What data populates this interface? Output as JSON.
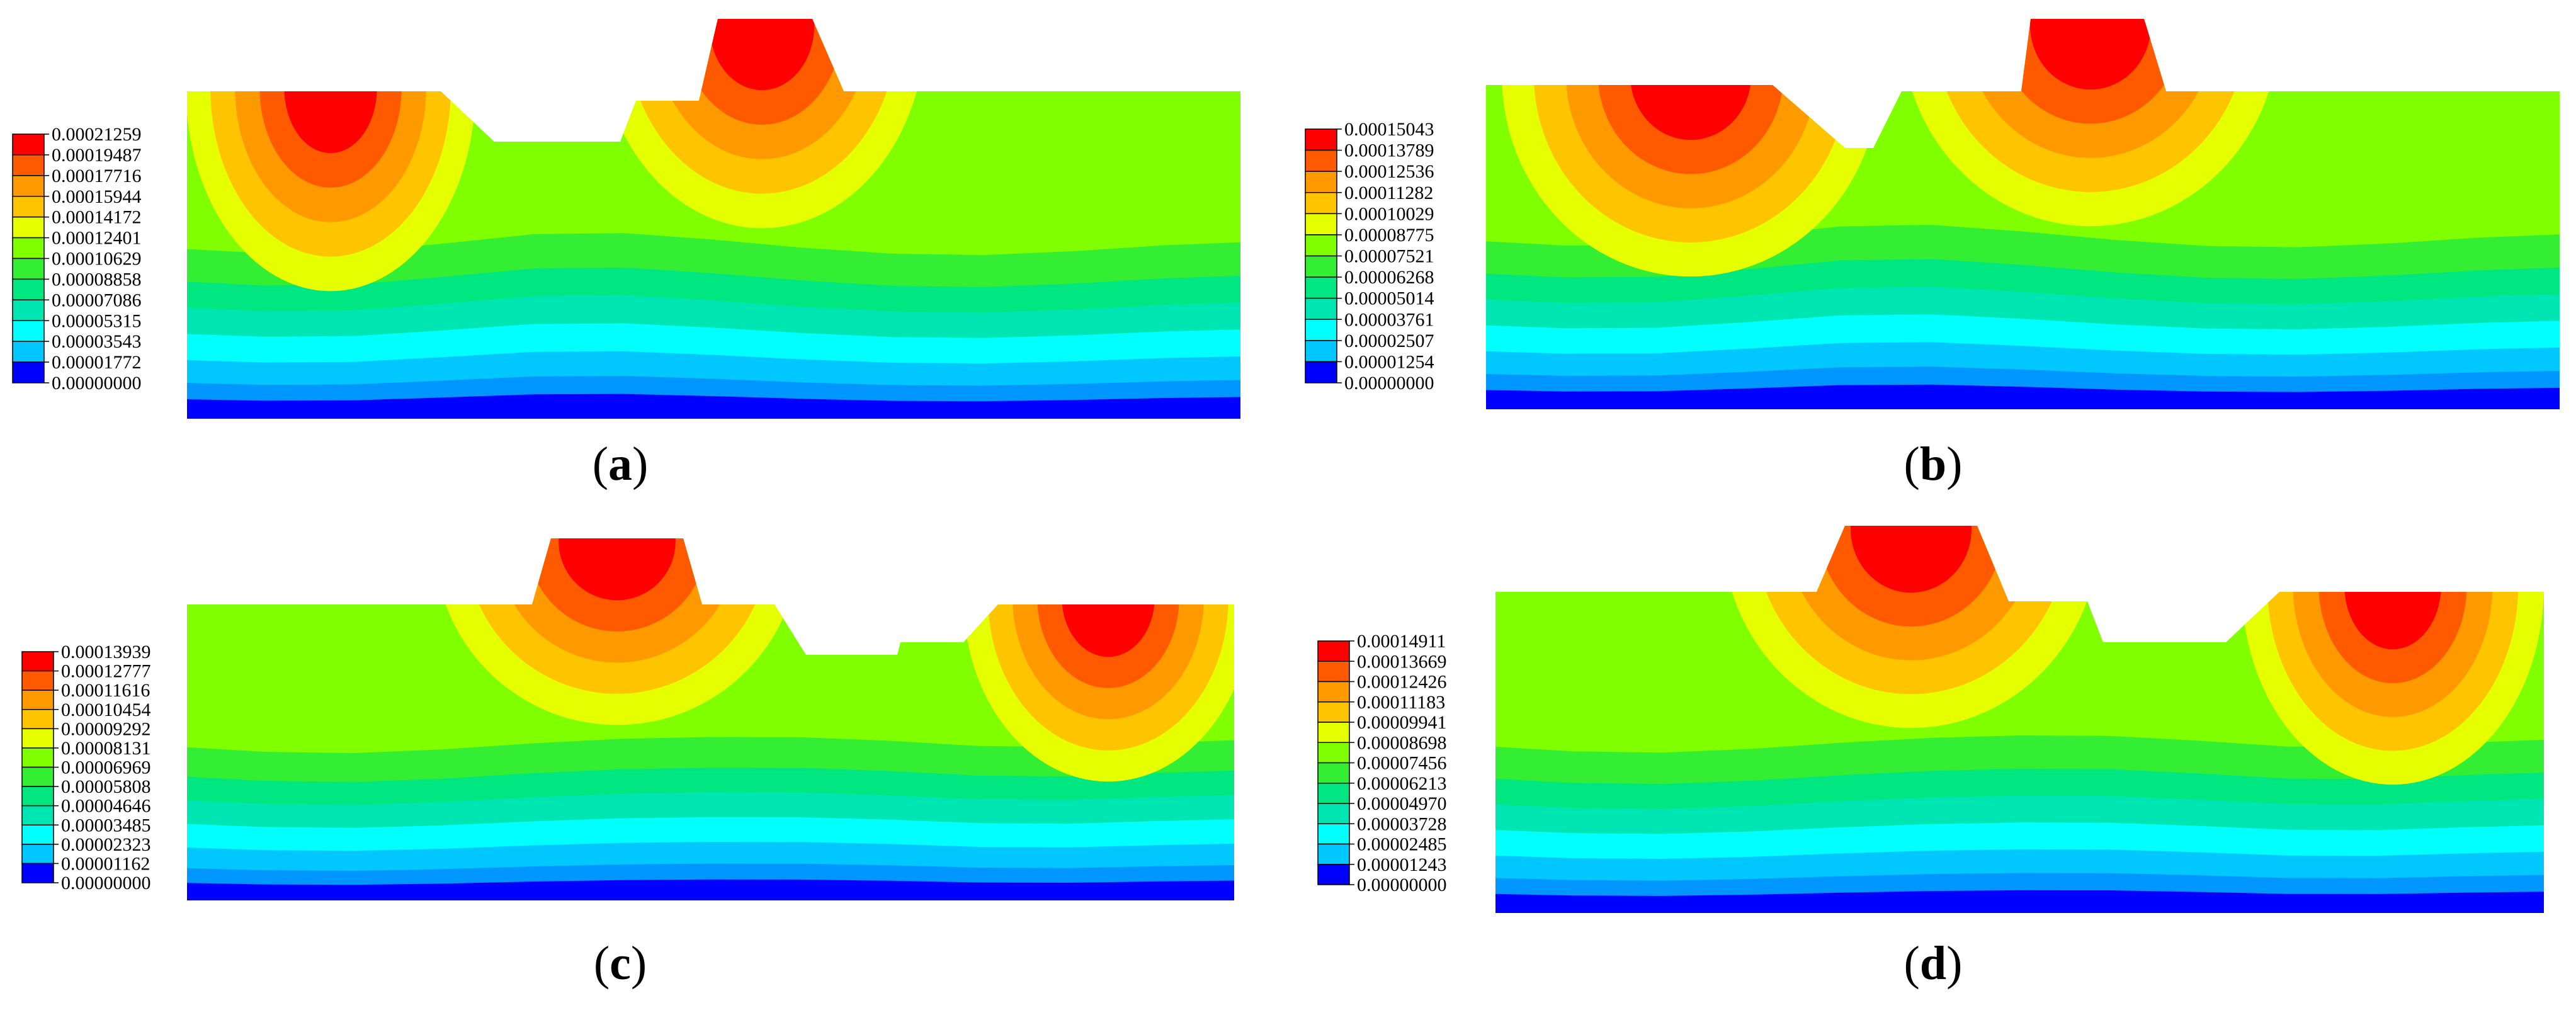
{
  "panels": [
    {
      "id": "a",
      "label_letter": "a",
      "legend_values": [
        "0.00021259",
        "0.00019487",
        "0.00017716",
        "0.00015944",
        "0.00014172",
        "0.00012401",
        "0.00010629",
        "0.00008858",
        "0.00007086",
        "0.00005315",
        "0.00003543",
        "0.00001772",
        "0.00000000"
      ],
      "load_shape": "a"
    },
    {
      "id": "b",
      "label_letter": "b",
      "legend_values": [
        "0.00015043",
        "0.00013789",
        "0.00012536",
        "0.00011282",
        "0.00010029",
        "0.00008775",
        "0.00007521",
        "0.00006268",
        "0.00005014",
        "0.00003761",
        "0.00002507",
        "0.00001254",
        "0.00000000"
      ],
      "load_shape": "b"
    },
    {
      "id": "c",
      "label_letter": "c",
      "legend_values": [
        "0.00013939",
        "0.00012777",
        "0.00011616",
        "0.00010454",
        "0.00009292",
        "0.00008131",
        "0.00006969",
        "0.00005808",
        "0.00004646",
        "0.00003485",
        "0.00002323",
        "0.00001162",
        "0.00000000"
      ],
      "load_shape": "c"
    },
    {
      "id": "d",
      "label_letter": "d",
      "legend_values": [
        "0.00014911",
        "0.00013669",
        "0.00012426",
        "0.00011183",
        "0.00009941",
        "0.00008698",
        "0.00007456",
        "0.00006213",
        "0.00004970",
        "0.00003728",
        "0.00002485",
        "0.00001243",
        "0.00000000"
      ],
      "load_shape": "d"
    }
  ],
  "colormap": [
    "#ff0000",
    "#ff5a00",
    "#ff9900",
    "#ffc400",
    "#e6ff00",
    "#7fff00",
    "#33ee33",
    "#00e680",
    "#00e6b3",
    "#00ffff",
    "#00c8ff",
    "#0096ff",
    "#0000ff"
  ]
}
